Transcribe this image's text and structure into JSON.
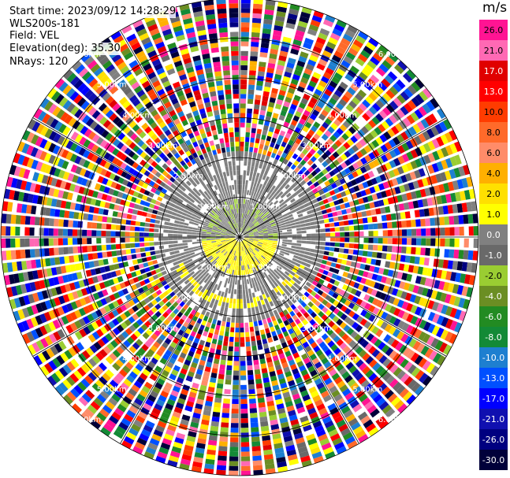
{
  "header": {
    "start_time": "Start time: 2023/09/12 14:28:29",
    "instrument": "WLS200s-181",
    "field": "Field: VEL",
    "elevation": "Elevation(deg): 35.30",
    "nrays": "NRays: 120"
  },
  "colorbar": {
    "unit": "m/s",
    "tick_labels": [
      "26.0",
      "21.0",
      "17.0",
      "13.0",
      "10.0",
      "8.0",
      "6.0",
      "4.0",
      "2.0",
      "1.0",
      "0.0",
      "-1.0",
      "-2.0",
      "-4.0",
      "-6.0",
      "-8.0",
      "-10.0",
      "-13.0",
      "-17.0",
      "-21.0",
      "-26.0",
      "-30.0"
    ],
    "colors": [
      "#ff1493",
      "#ff69b4",
      "#e00000",
      "#ff0000",
      "#ff3c00",
      "#ff6a2a",
      "#ff8c69",
      "#ffb000",
      "#ffe000",
      "#ffff00",
      "#808080",
      "#696969",
      "#9acd32",
      "#6b8e23",
      "#228b22",
      "#138a36",
      "#1e7fd0",
      "#0050ff",
      "#0000ff",
      "#1010b0",
      "#000080",
      "#00003a"
    ]
  },
  "chart_data": {
    "type": "heatmap",
    "projection": "polar PPI (plan position indicator)",
    "field": "VEL",
    "units": "m/s",
    "elevation_deg": 35.3,
    "n_rays": 120,
    "range_max_km": 6.0,
    "colorbar_range": [
      -30.0,
      26.0
    ],
    "range_ring_labels": [
      "1.00km",
      "2.00km",
      "3.00km",
      "4.00km",
      "5.00km",
      "6.00km"
    ],
    "azimuth_lines_deg": [
      0,
      30,
      60,
      90,
      120,
      150,
      180,
      210,
      240,
      270,
      300,
      330
    ],
    "pattern": {
      "near_field_rings_km": [
        0.0,
        1.0
      ],
      "north_sector_velocity": [
        -4.0,
        -2.0
      ],
      "south_sector_velocity": [
        1.0,
        4.0
      ],
      "mid_ring_km": [
        1.0,
        2.2
      ],
      "mid_ring_velocity": [
        -2.0,
        0.0
      ],
      "outer_ring_km": [
        2.2,
        6.0
      ],
      "outer_ring": "noise (random velocities across full scale)"
    }
  }
}
